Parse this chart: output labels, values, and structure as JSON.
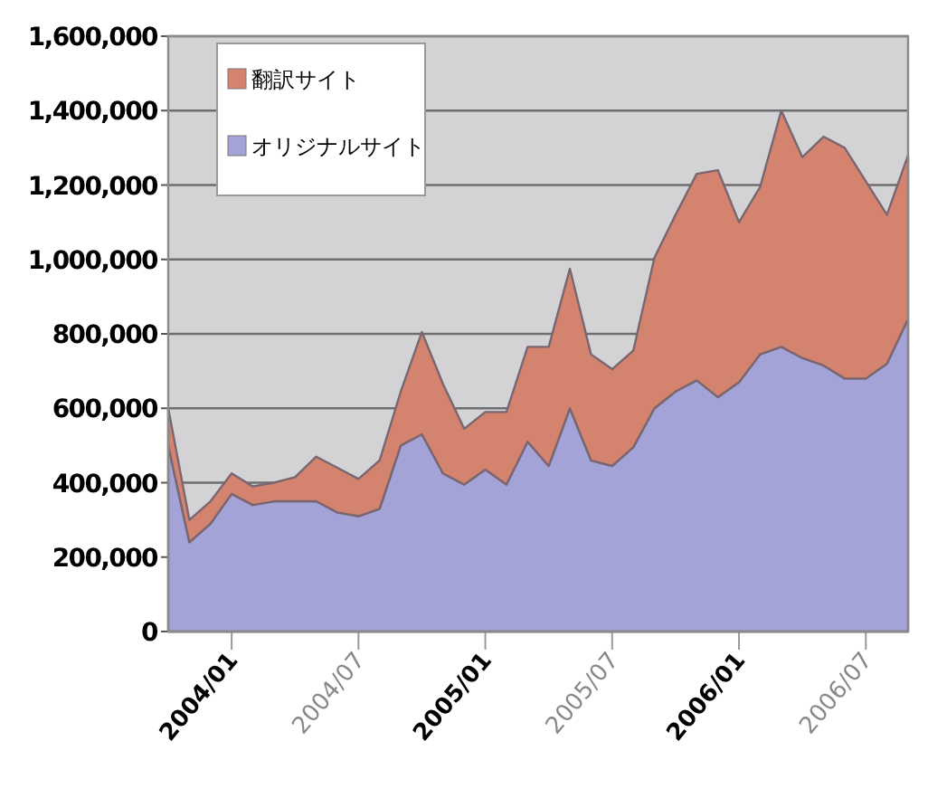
{
  "chart_data": {
    "type": "area",
    "stacked": true,
    "grid": "y",
    "legend": "top left",
    "x": [
      "2003-10",
      "2003-11",
      "2003-12",
      "2004-01",
      "2004-02",
      "2004-03",
      "2004-04",
      "2004-05",
      "2004-06",
      "2004-07",
      "2004-08",
      "2004-09",
      "2004-10",
      "2004-11",
      "2004-12",
      "2005-01",
      "2005-02",
      "2005-03",
      "2005-04",
      "2005-05",
      "2005-06",
      "2005-07",
      "2005-08",
      "2005-09",
      "2005-10",
      "2005-11",
      "2005-12",
      "2006-01",
      "2006-02",
      "2006-03",
      "2006-04",
      "2006-05",
      "2006-06",
      "2006-07",
      "2006-08",
      "2006-09"
    ],
    "xlim": [
      "2003-10",
      "2006-09"
    ],
    "xticks": [
      {
        "value": "2004-01",
        "label": "2004/01"
      },
      {
        "value": "2004-07",
        "label": "2004/07"
      },
      {
        "value": "2005-01",
        "label": "2005/01"
      },
      {
        "value": "2005-07",
        "label": "2005/07"
      },
      {
        "value": "2006-01",
        "label": "2006/01"
      },
      {
        "value": "2006-07",
        "label": "2006/07"
      }
    ],
    "ylim": [
      0,
      1600000
    ],
    "yticks": [
      0,
      {
        "value": 200000,
        "label": "200,000"
      },
      {
        "value": 400000,
        "label": "400,000"
      },
      {
        "value": 600000,
        "label": "600,000"
      },
      {
        "value": 800000,
        "label": "800,000"
      },
      {
        "value": 1000000,
        "label": "1,000,000"
      },
      {
        "value": 1200000,
        "label": "1,200,000"
      },
      {
        "value": 1400000,
        "label": "1,400,000"
      },
      {
        "value": 1600000,
        "label": "1,600,000"
      }
    ],
    "series": [
      {
        "name": "オリジナルサイト",
        "color": "#a3a3d8",
        "values": [
          500000,
          240000,
          290000,
          370000,
          340000,
          350000,
          350000,
          350000,
          320000,
          310000,
          330000,
          500000,
          530000,
          425000,
          395000,
          435000,
          395000,
          510000,
          445000,
          600000,
          460000,
          445000,
          495000,
          600000,
          645000,
          675000,
          630000,
          670000,
          745000,
          765000,
          735000,
          715000,
          680000,
          680000,
          720000,
          840000
        ]
      },
      {
        "name": "翻訳サイト",
        "color": "#d4846e",
        "values": [
          100000,
          60000,
          60000,
          55000,
          50000,
          50000,
          65000,
          120000,
          120000,
          100000,
          130000,
          145000,
          275000,
          240000,
          150000,
          155000,
          195000,
          255000,
          320000,
          375000,
          285000,
          260000,
          260000,
          405000,
          475000,
          555000,
          610000,
          430000,
          450000,
          635000,
          540000,
          615000,
          620000,
          530000,
          400000,
          440000
        ]
      }
    ]
  }
}
